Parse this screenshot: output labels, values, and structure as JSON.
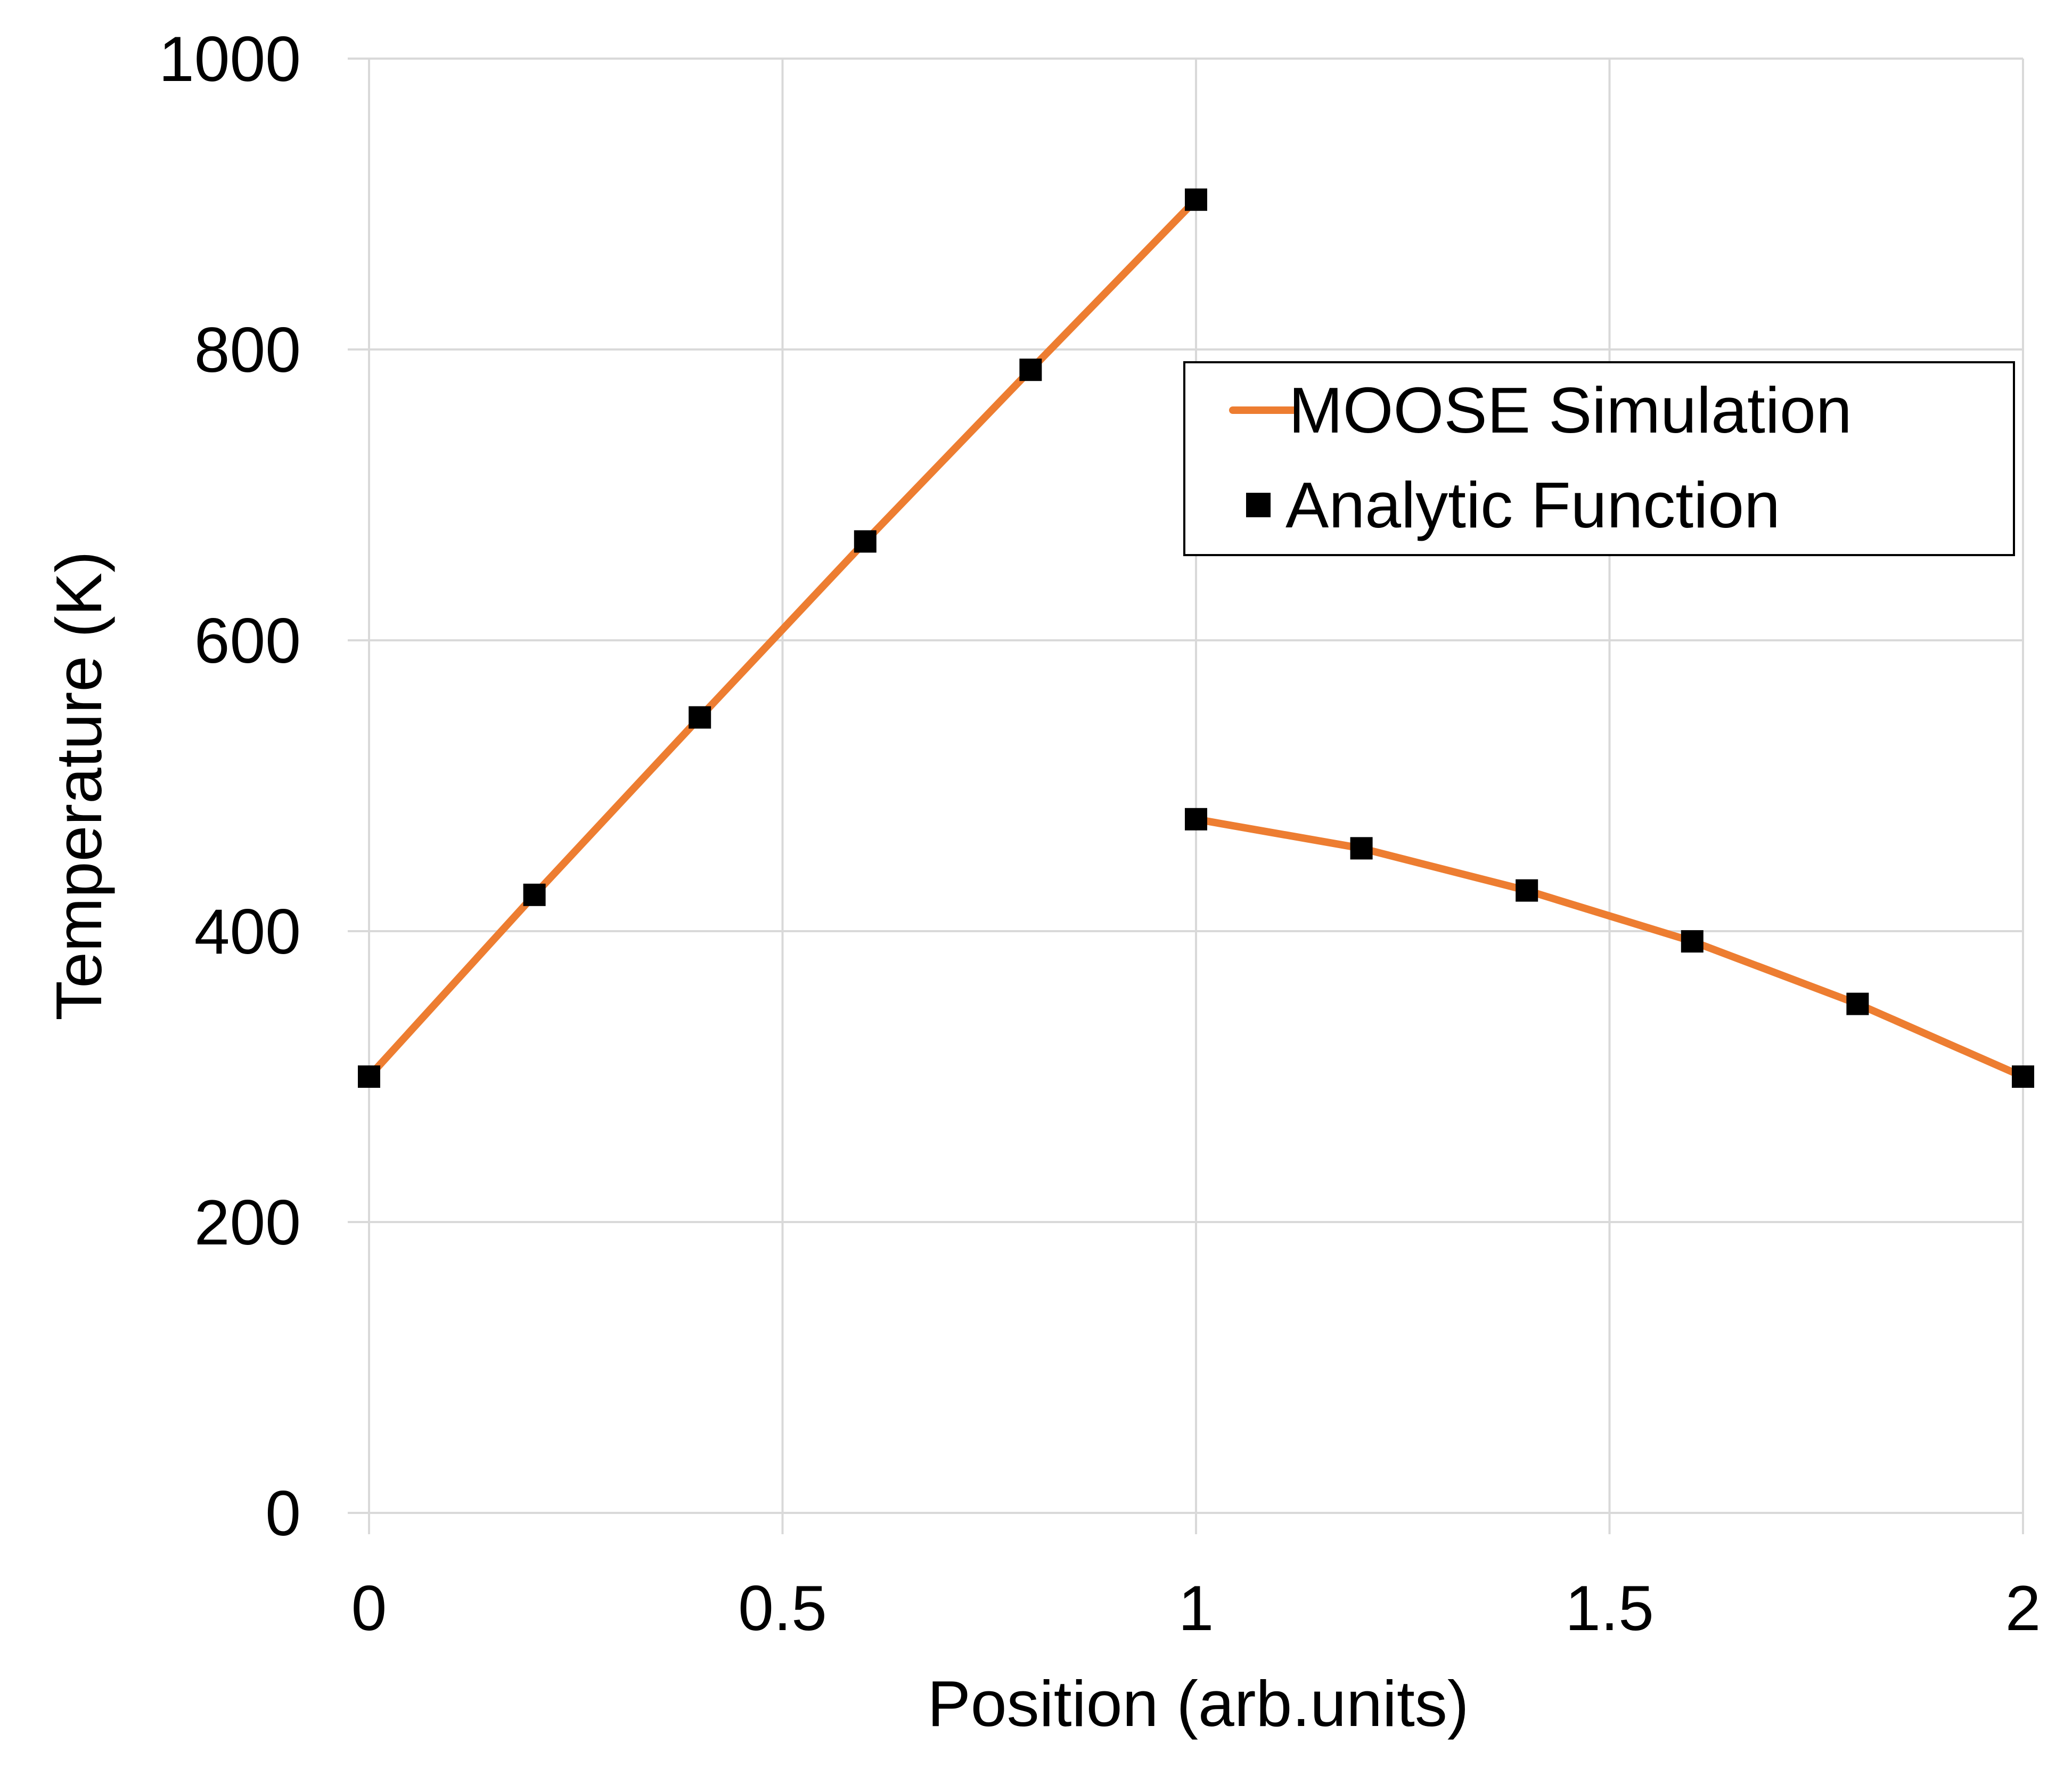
{
  "chart_data": {
    "type": "line",
    "title": "",
    "xlabel": "Position (arb.units)",
    "ylabel": "Temperature (K)",
    "xlim": [
      0,
      2
    ],
    "ylim": [
      0,
      1000
    ],
    "x_ticks": [
      0,
      0.5,
      1,
      1.5,
      2
    ],
    "y_ticks": [
      0,
      200,
      400,
      600,
      800,
      1000
    ],
    "x_tick_labels": [
      "0",
      "0.5",
      "1",
      "1.5",
      "2"
    ],
    "y_tick_labels": [
      "0",
      "200",
      "400",
      "600",
      "800",
      "1000"
    ],
    "grid": true,
    "legend_position": "top-right",
    "series": [
      {
        "name": "MOOSE Simulation",
        "kind": "line",
        "color": "#ed7d31",
        "segments": [
          [
            [
              0,
              300
            ],
            [
              0.2,
              425
            ],
            [
              0.4,
              547
            ],
            [
              0.6,
              668
            ],
            [
              0.8,
              786
            ],
            [
              1.0,
              903
            ]
          ],
          [
            [
              1.0,
              477
            ],
            [
              1.2,
              457
            ],
            [
              1.4,
              428
            ],
            [
              1.6,
              393
            ],
            [
              1.8,
              350
            ],
            [
              2.0,
              300
            ]
          ]
        ]
      },
      {
        "name": "Analytic Function",
        "kind": "markers",
        "marker": "square",
        "color": "#000000",
        "points": [
          [
            0,
            300
          ],
          [
            0.2,
            425
          ],
          [
            0.4,
            547
          ],
          [
            0.6,
            668
          ],
          [
            0.8,
            786
          ],
          [
            1.0,
            903
          ],
          [
            1.0,
            477
          ],
          [
            1.2,
            457
          ],
          [
            1.4,
            428
          ],
          [
            1.6,
            393
          ],
          [
            1.8,
            350
          ],
          [
            2.0,
            300
          ]
        ]
      }
    ]
  }
}
